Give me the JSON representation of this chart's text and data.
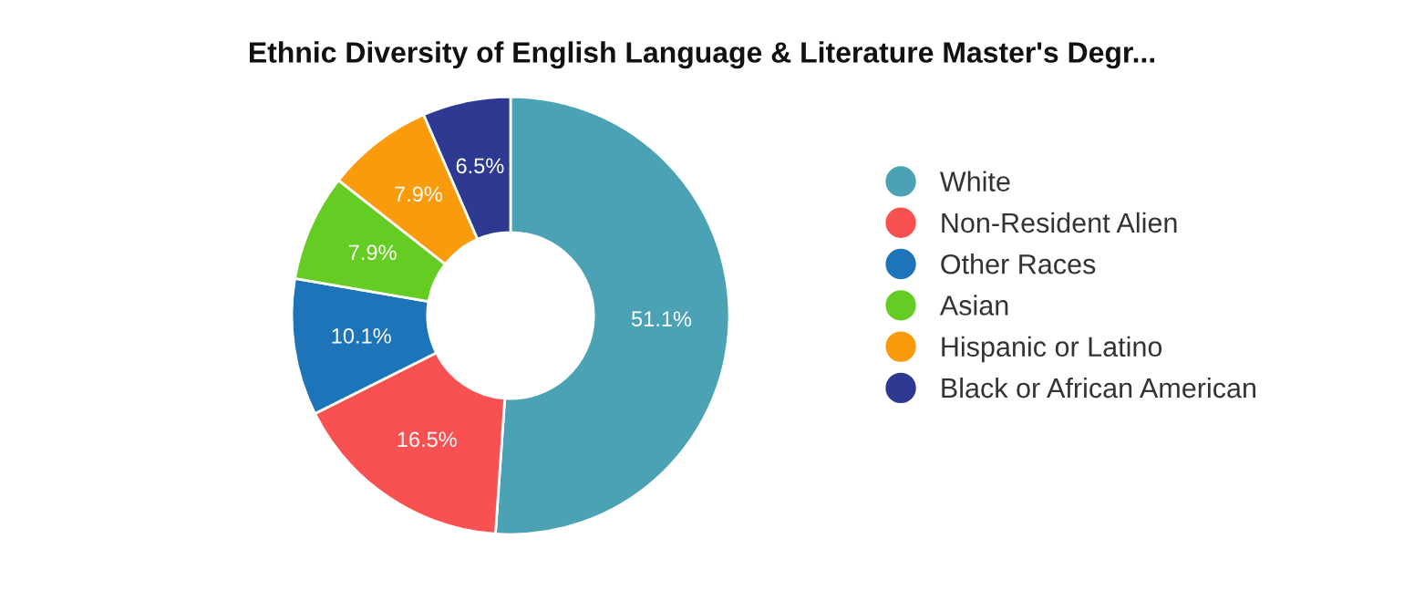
{
  "chart_data": {
    "type": "donut",
    "title": "Ethnic Diversity of English Language & Literature Master's Degr...",
    "categories": [
      "White",
      "Non-Resident Alien",
      "Other Races",
      "Asian",
      "Hispanic or Latino",
      "Black or African American"
    ],
    "values": [
      51.1,
      16.5,
      10.1,
      7.9,
      7.9,
      6.5
    ],
    "colors": [
      "#4ba2b4",
      "#f95152",
      "#1e74b9",
      "#64cc22",
      "#fa9b0c",
      "#2e3a91"
    ],
    "value_labels": [
      "51.1%",
      "16.5%",
      "10.1%",
      "7.9%",
      "7.9%",
      "6.5%"
    ],
    "legend": "right"
  }
}
